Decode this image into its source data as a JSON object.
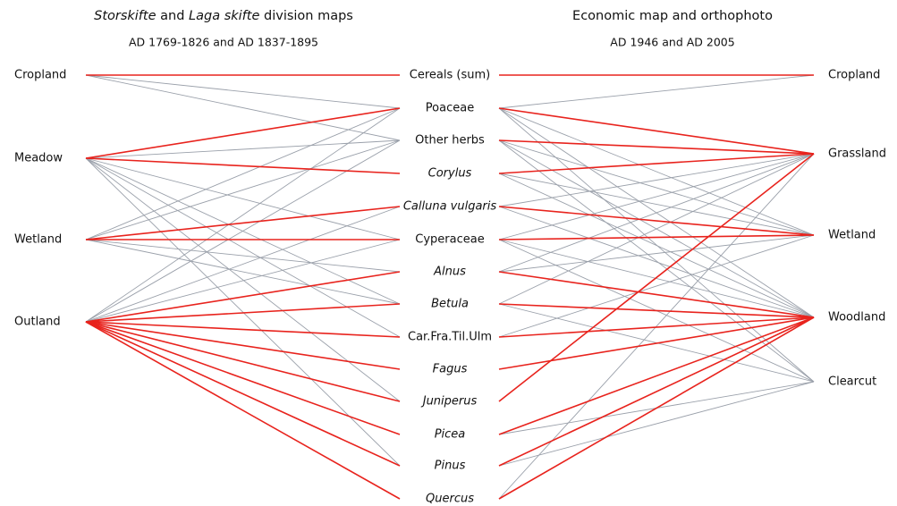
{
  "left_panel": {
    "title": [
      {
        "text": "Storskifte",
        "italic": true
      },
      {
        "text": "and",
        "italic": false
      },
      {
        "text": "Laga skifte",
        "italic": true
      },
      {
        "text": "division maps",
        "italic": false
      }
    ],
    "subtitle": "AD 1769-1826 and AD 1837-1895",
    "nodes": [
      "Cropland",
      "Meadow",
      "Wetland",
      "Outland"
    ]
  },
  "right_panel": {
    "title": "Economic map and orthophoto",
    "subtitle": "AD 1946 and AD 2005",
    "nodes": [
      "Cropland",
      "Grassland",
      "Wetland",
      "Woodland",
      "Clearcut"
    ]
  },
  "taxa": [
    {
      "label": "Cereals (sum)",
      "italic": false
    },
    {
      "label": "Poaceae",
      "italic": false
    },
    {
      "label": "Other herbs",
      "italic": false
    },
    {
      "label": "Corylus",
      "italic": true
    },
    {
      "label": "Calluna vulgaris",
      "italic": true
    },
    {
      "label": "Cyperaceae",
      "italic": false
    },
    {
      "label": "Alnus",
      "italic": true
    },
    {
      "label": "Betula",
      "italic": true
    },
    {
      "label": "Car.Fra.Til.Ulm",
      "italic": false
    },
    {
      "label": "Fagus",
      "italic": true
    },
    {
      "label": "Juniperus",
      "italic": true
    },
    {
      "label": "Picea",
      "italic": true
    },
    {
      "label": "Pinus",
      "italic": true
    },
    {
      "label": "Quercus",
      "italic": true
    }
  ]
}
